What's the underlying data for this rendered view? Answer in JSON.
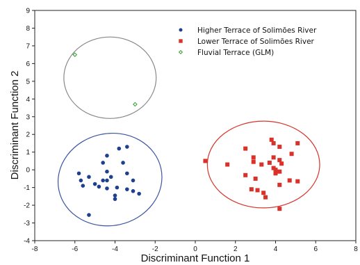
{
  "chart_data": {
    "type": "scatter",
    "title": "",
    "xlabel": "Discriminant Function 1",
    "ylabel": "Discriminant Function 2",
    "xlim": [
      -8,
      8
    ],
    "ylim": [
      -4,
      9
    ],
    "xticks": [
      "-8",
      "-6",
      "-4",
      "-2",
      "0",
      "2",
      "4",
      "6",
      "8"
    ],
    "yticks": [
      "-4",
      "-3",
      "-2",
      "-1",
      "0",
      "1",
      "2",
      "3",
      "4",
      "5",
      "6",
      "7",
      "8",
      "9"
    ],
    "grid": false,
    "legend_position": "top-right",
    "series": [
      {
        "name": "Higher Terrace of Solimões River",
        "marker": "circle",
        "color": "#1f3f8f",
        "ellipse_color": "#3a55a0",
        "points": [
          [
            -3.4,
            1.3
          ],
          [
            -3.8,
            1.2
          ],
          [
            -4.4,
            0.8
          ],
          [
            -4.6,
            0.4
          ],
          [
            -3.6,
            0.4
          ],
          [
            -5.8,
            -0.2
          ],
          [
            -4.4,
            -0.1
          ],
          [
            -3.4,
            -0.2
          ],
          [
            -5.3,
            -0.4
          ],
          [
            -4.2,
            -0.4
          ],
          [
            -5.7,
            -0.6
          ],
          [
            -4.6,
            -0.6
          ],
          [
            -4.4,
            -0.6
          ],
          [
            -3.1,
            -0.6
          ],
          [
            -5.6,
            -0.9
          ],
          [
            -5.0,
            -0.8
          ],
          [
            -4.8,
            -0.95
          ],
          [
            -4.4,
            -1.05
          ],
          [
            -3.9,
            -1.0
          ],
          [
            -3.4,
            -1.1
          ],
          [
            -3.1,
            -1.2
          ],
          [
            -2.8,
            -1.35
          ],
          [
            -4.0,
            -1.45
          ],
          [
            -4.0,
            -1.65
          ],
          [
            -5.3,
            -2.55
          ]
        ]
      },
      {
        "name": "Lower Terrace of Solimões River",
        "marker": "square",
        "color": "#d8322a",
        "ellipse_color": "#d8322a",
        "points": [
          [
            0.5,
            0.5
          ],
          [
            1.6,
            0.3
          ],
          [
            2.5,
            1.2
          ],
          [
            3.8,
            1.7
          ],
          [
            3.9,
            1.5
          ],
          [
            5.1,
            1.5
          ],
          [
            4.2,
            1.3
          ],
          [
            4.8,
            0.9
          ],
          [
            2.9,
            0.7
          ],
          [
            3.9,
            0.7
          ],
          [
            4.2,
            0.55
          ],
          [
            4.3,
            0.35
          ],
          [
            2.9,
            0.45
          ],
          [
            3.3,
            0.3
          ],
          [
            3.7,
            0.4
          ],
          [
            3.9,
            0.1
          ],
          [
            4.0,
            0.0
          ],
          [
            4.2,
            -0.1
          ],
          [
            2.5,
            -0.3
          ],
          [
            3.0,
            -0.5
          ],
          [
            4.0,
            -0.2
          ],
          [
            4.7,
            -0.6
          ],
          [
            5.1,
            -0.65
          ],
          [
            4.2,
            -0.85
          ],
          [
            2.8,
            -1.1
          ],
          [
            3.1,
            -1.15
          ],
          [
            3.4,
            -1.3
          ],
          [
            3.5,
            -1.55
          ],
          [
            4.2,
            -2.2
          ]
        ]
      },
      {
        "name": "Fluvial Terrace (GLM)",
        "marker": "diamond",
        "color": "#2ca02c",
        "ellipse_color": "#888888",
        "points": [
          [
            -6.0,
            6.5
          ],
          [
            -3.0,
            3.7
          ]
        ]
      }
    ],
    "ellipses": [
      {
        "series": "Higher Terrace of Solimões River",
        "cx": -4.25,
        "cy": -0.55,
        "rx": 2.6,
        "ry": 2.6,
        "angle_deg": 12
      },
      {
        "series": "Lower Terrace of Solimões River",
        "cx": 3.4,
        "cy": 0.3,
        "rx": 2.8,
        "ry": 2.45,
        "angle_deg": 0
      },
      {
        "series": "Fluvial Terrace (GLM)",
        "cx": -4.25,
        "cy": 5.2,
        "rx": 2.3,
        "ry": 2.3,
        "angle_deg": 0
      }
    ]
  }
}
